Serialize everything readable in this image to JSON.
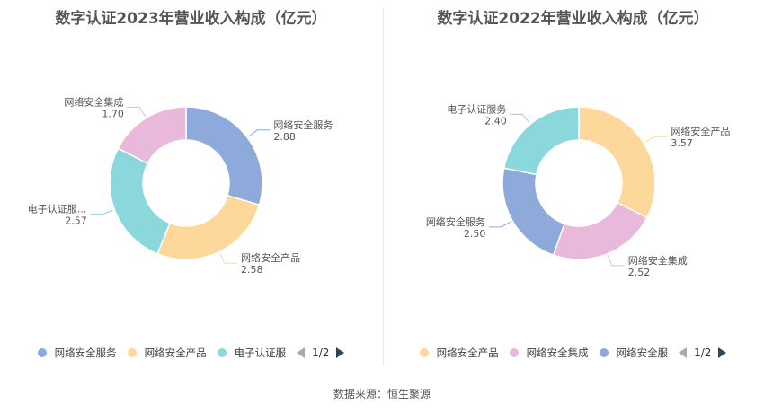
{
  "chart_data": [
    {
      "type": "pie",
      "title": "数字认证2023年营业收入构成（亿元）",
      "slices": [
        {
          "name": "网络安全服务",
          "label": "网络安全服务",
          "value": 2.88,
          "color": "#8eaadb"
        },
        {
          "name": "网络安全产品",
          "label": "网络安全产品",
          "value": 2.58,
          "color": "#fdd89a"
        },
        {
          "name": "电子认证服务",
          "label": "电子认证服...",
          "value": 2.57,
          "color": "#8ad8dc"
        },
        {
          "name": "网络安全集成",
          "label": "网络安全集成",
          "value": 1.7,
          "color": "#e8b9db"
        }
      ],
      "legend": {
        "items": [
          {
            "label": "网络安全服务",
            "color": "#8eaadb"
          },
          {
            "label": "网络安全产品",
            "color": "#fdd89a"
          },
          {
            "label": "电子认证服",
            "color": "#8ad8dc"
          }
        ],
        "page": "1/2",
        "placement": "bottom"
      }
    },
    {
      "type": "pie",
      "title": "数字认证2022年营业收入构成（亿元）",
      "slices": [
        {
          "name": "网络安全产品",
          "label": "网络安全产品",
          "value": 3.57,
          "color": "#fdd89a"
        },
        {
          "name": "网络安全集成",
          "label": "网络安全集成",
          "value": 2.52,
          "color": "#e8b9db"
        },
        {
          "name": "网络安全服务",
          "label": "网络安全服务",
          "value": 2.5,
          "color": "#8eaadb"
        },
        {
          "name": "电子认证服务",
          "label": "电子认证服务",
          "value": 2.4,
          "color": "#8ad8dc"
        }
      ],
      "legend": {
        "items": [
          {
            "label": "网络安全产品",
            "color": "#fdd89a"
          },
          {
            "label": "网络安全集成",
            "color": "#e8b9db"
          },
          {
            "label": "网络安全服",
            "color": "#8eaadb"
          }
        ],
        "page": "1/2",
        "placement": "bottom"
      }
    }
  ],
  "source_text": "数据来源：恒生聚源"
}
